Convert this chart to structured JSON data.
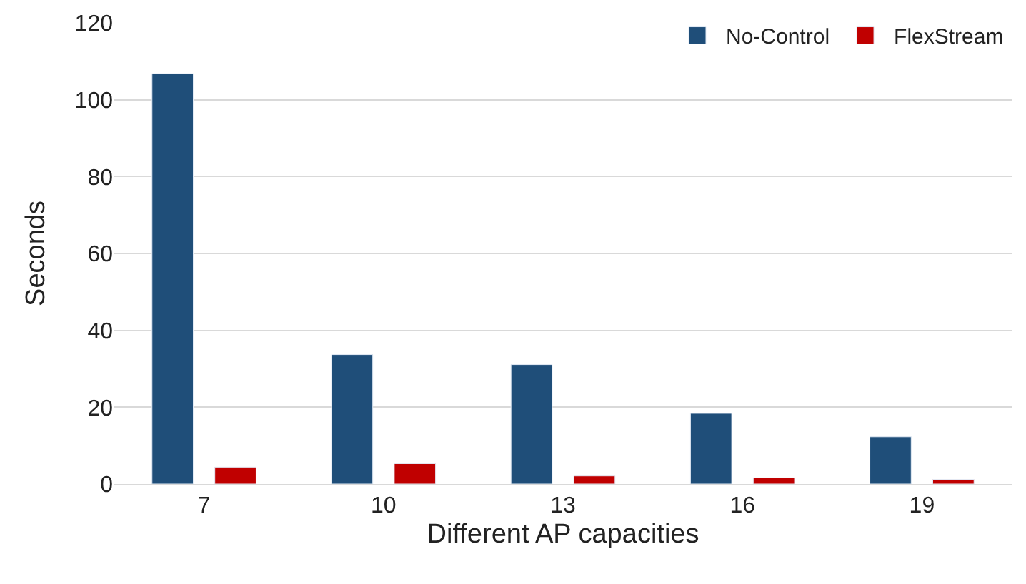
{
  "chart_data": {
    "type": "bar",
    "xlabel": "Different AP capacities",
    "ylabel": "Seconds",
    "categories": [
      "7",
      "10",
      "13",
      "16",
      "19"
    ],
    "series": [
      {
        "name": "No-Control",
        "color": "#1f4e79",
        "values": [
          106.8,
          33.7,
          31.1,
          18.4,
          12.3
        ]
      },
      {
        "name": "FlexStream",
        "color": "#c00000",
        "values": [
          4.4,
          5.3,
          2.1,
          1.6,
          1.2
        ]
      }
    ],
    "ylim": [
      0,
      120
    ],
    "yticks": [
      0,
      20,
      40,
      60,
      80,
      100,
      120
    ],
    "grid": "y",
    "legend": "top right"
  }
}
